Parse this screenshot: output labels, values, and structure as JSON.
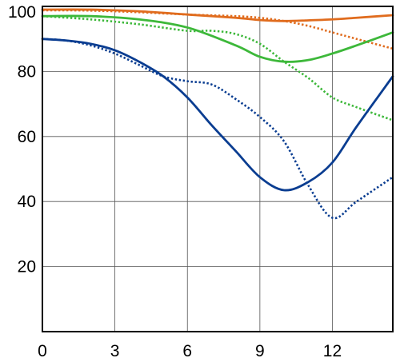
{
  "chart_data": {
    "type": "line",
    "title": "",
    "xlabel": "",
    "ylabel": "",
    "xlim": [
      0,
      14.5
    ],
    "ylim": [
      0,
      100
    ],
    "grid": true,
    "legend": "none",
    "x_ticks": [
      0,
      3,
      6,
      9,
      12
    ],
    "x_tick_labels": [
      "0",
      "3",
      "6",
      "9",
      "12"
    ],
    "y_ticks": [
      20,
      40,
      60,
      80,
      100
    ],
    "y_tick_labels": [
      "20",
      "40",
      "60",
      "80",
      "100"
    ],
    "series": [
      {
        "color": "#e06c1e",
        "style": "solid",
        "x": [
          0,
          2,
          4,
          6,
          8,
          9,
          10,
          11,
          12,
          13,
          14.5
        ],
        "y": [
          99,
          99,
          98.5,
          97.5,
          96.5,
          95.8,
          95.5,
          95.7,
          96,
          96.5,
          97.3
        ]
      },
      {
        "color": "#e06c1e",
        "style": "dotted",
        "x": [
          0,
          2,
          4,
          6,
          8,
          9,
          10,
          11,
          12,
          13,
          14.5
        ],
        "y": [
          98.8,
          98.7,
          98.2,
          97.5,
          97,
          96.5,
          95.5,
          94,
          92,
          90,
          87
        ]
      },
      {
        "color": "#3db83a",
        "style": "solid",
        "x": [
          0,
          2,
          4,
          6,
          8,
          9,
          10,
          11,
          12,
          13,
          14.5
        ],
        "y": [
          97,
          97,
          96,
          93.5,
          88,
          84.5,
          83,
          83.5,
          85.5,
          88,
          92
        ]
      },
      {
        "color": "#3db83a",
        "style": "dotted",
        "x": [
          0,
          2,
          4,
          6,
          7,
          8,
          9,
          10,
          11,
          12,
          13,
          14.5
        ],
        "y": [
          97,
          96,
          94.5,
          92.5,
          92.5,
          91.5,
          88.5,
          83,
          78,
          72,
          69,
          65
        ]
      },
      {
        "color": "#0a3d91",
        "style": "solid",
        "x": [
          0,
          1,
          2,
          3,
          4,
          5,
          6,
          7,
          8,
          9,
          10,
          11,
          12,
          13,
          14.5
        ],
        "y": [
          90,
          89.5,
          88.5,
          86.5,
          83,
          78.5,
          72,
          63.5,
          55.5,
          47.5,
          43.5,
          46,
          52,
          63,
          78.5
        ]
      },
      {
        "color": "#0a3d91",
        "style": "dotted",
        "x": [
          0,
          1,
          2,
          3,
          4,
          5,
          6,
          7,
          8,
          9,
          10,
          11,
          12,
          13,
          14.5
        ],
        "y": [
          90,
          89.5,
          88,
          85.5,
          82,
          78.5,
          77,
          76,
          71.5,
          66,
          58.5,
          45,
          35,
          40,
          47.5
        ]
      }
    ]
  }
}
